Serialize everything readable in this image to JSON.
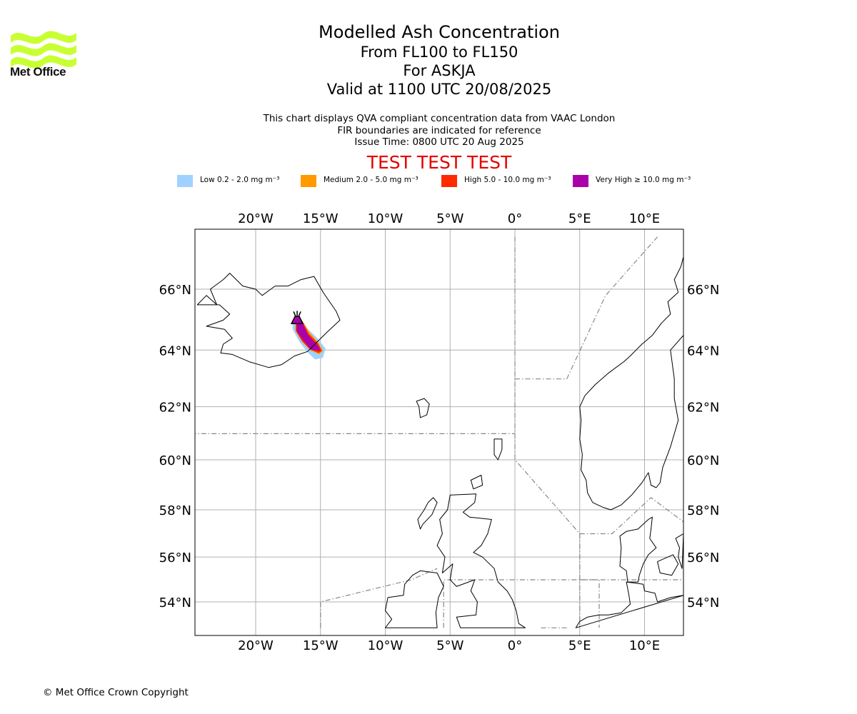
{
  "logo": {
    "name": "Met Office",
    "color": "#c8ff32"
  },
  "title": {
    "line1": "Modelled Ash Concentration",
    "line2": "From FL100 to FL150",
    "line3": "For ASKJA",
    "line4": "Valid at 1100 UTC 20/08/2025"
  },
  "subtitle": {
    "line1": "This chart displays QVA compliant concentration data from VAAC London",
    "line2": "FIR boundaries are indicated for reference",
    "line3": "Issue Time: 0800 UTC 20 Aug 2025"
  },
  "banner": "TEST TEST TEST",
  "legend": [
    {
      "label": "Low 0.2 - 2.0 mg m⁻³",
      "color": "#a0d2ff"
    },
    {
      "label": "Medium 2.0 - 5.0 mg m⁻³",
      "color": "#ff9a00"
    },
    {
      "label": "High 5.0 - 10.0 mg m⁻³",
      "color": "#ff2a00"
    },
    {
      "label": "Very High ≥ 10.0 mg m⁻³",
      "color": "#aa00aa"
    }
  ],
  "map": {
    "lon_range": [
      -25,
      13
    ],
    "lat_range": [
      52.8,
      67.6
    ],
    "lon_ticks": [
      {
        "value": -20,
        "label": "20°W"
      },
      {
        "value": -15,
        "label": "15°W"
      },
      {
        "value": -10,
        "label": "10°W"
      },
      {
        "value": -5,
        "label": "5°W"
      },
      {
        "value": 0,
        "label": "0°"
      },
      {
        "value": 5,
        "label": "5°E"
      },
      {
        "value": 10,
        "label": "10°E"
      }
    ],
    "lat_ticks": [
      {
        "value": 66,
        "label": "66°N"
      },
      {
        "value": 64,
        "label": "64°N"
      },
      {
        "value": 62,
        "label": "62°N"
      },
      {
        "value": 60,
        "label": "60°N"
      },
      {
        "value": 58,
        "label": "58°N"
      },
      {
        "value": 56,
        "label": "56°N"
      },
      {
        "value": 54,
        "label": "54°N"
      }
    ],
    "volcano": {
      "name": "ASKJA",
      "lon": -16.8,
      "lat": 65.05
    },
    "ash_plume": {
      "low": [
        [
          -17.1,
          65.0
        ],
        [
          -16.5,
          65.0
        ],
        [
          -16.0,
          64.7
        ],
        [
          -15.3,
          64.4
        ],
        [
          -14.65,
          64.05
        ],
        [
          -14.85,
          63.75
        ],
        [
          -15.4,
          63.7
        ],
        [
          -16.0,
          63.95
        ],
        [
          -16.6,
          64.3
        ],
        [
          -17.1,
          64.7
        ]
      ],
      "medium": [
        [
          -16.9,
          64.95
        ],
        [
          -16.4,
          64.95
        ],
        [
          -15.9,
          64.6
        ],
        [
          -15.2,
          64.25
        ],
        [
          -14.85,
          63.98
        ],
        [
          -15.1,
          63.88
        ],
        [
          -15.75,
          64.0
        ],
        [
          -16.4,
          64.3
        ],
        [
          -16.9,
          64.65
        ]
      ],
      "high": [
        [
          -16.85,
          64.92
        ],
        [
          -16.4,
          64.92
        ],
        [
          -15.95,
          64.55
        ],
        [
          -15.2,
          64.2
        ],
        [
          -14.95,
          63.98
        ],
        [
          -15.15,
          63.92
        ],
        [
          -15.8,
          64.05
        ],
        [
          -16.4,
          64.32
        ],
        [
          -16.85,
          64.65
        ]
      ],
      "very_high": [
        [
          -16.8,
          64.9
        ],
        [
          -16.4,
          64.9
        ],
        [
          -16.0,
          64.5
        ],
        [
          -15.25,
          64.15
        ],
        [
          -15.05,
          64.0
        ],
        [
          -15.7,
          64.02
        ],
        [
          -16.3,
          64.35
        ],
        [
          -16.8,
          64.65
        ]
      ]
    },
    "fir_boundaries": [
      [
        [
          -25,
          61.0
        ],
        [
          0,
          61.0
        ]
      ],
      [
        [
          0,
          67.6
        ],
        [
          0,
          60.0
        ],
        [
          5,
          57.0
        ],
        [
          5,
          52.8
        ]
      ],
      [
        [
          0,
          63.0
        ],
        [
          4,
          63.0
        ],
        [
          7,
          65.8
        ],
        [
          11,
          67.6
        ]
      ],
      [
        [
          5,
          57.0
        ],
        [
          7.5,
          57.0
        ],
        [
          10.5,
          58.5
        ],
        [
          13,
          57.5
        ]
      ],
      [
        [
          -15,
          52.8
        ],
        [
          -15,
          54.0
        ],
        [
          -8,
          55.0
        ],
        [
          -6,
          55.5
        ]
      ],
      [
        [
          -5.5,
          52.8
        ],
        [
          -5.5,
          55.0
        ],
        [
          5,
          55.0
        ],
        [
          6.5,
          55.0
        ],
        [
          6.5,
          52.8
        ]
      ],
      [
        [
          4,
          52.8
        ],
        [
          2,
          52.8
        ]
      ],
      [
        [
          5,
          55.0
        ],
        [
          13,
          55.0
        ]
      ]
    ],
    "coastlines": {
      "iceland": [
        [
          -24.5,
          65.5
        ],
        [
          -23.8,
          65.8
        ],
        [
          -23.0,
          65.5
        ],
        [
          -23.5,
          66.0
        ],
        [
          -22.5,
          66.3
        ],
        [
          -22.0,
          66.5
        ],
        [
          -21.0,
          66.1
        ],
        [
          -20.0,
          66.0
        ],
        [
          -19.5,
          65.8
        ],
        [
          -18.5,
          66.1
        ],
        [
          -17.5,
          66.1
        ],
        [
          -16.5,
          66.3
        ],
        [
          -15.5,
          66.4
        ],
        [
          -14.8,
          65.9
        ],
        [
          -13.8,
          65.3
        ],
        [
          -13.5,
          65.0
        ],
        [
          -14.5,
          64.6
        ],
        [
          -15.2,
          64.3
        ],
        [
          -16.0,
          63.95
        ],
        [
          -17.0,
          63.8
        ],
        [
          -18.0,
          63.5
        ],
        [
          -19.0,
          63.4
        ],
        [
          -20.5,
          63.6
        ],
        [
          -21.8,
          63.85
        ],
        [
          -22.7,
          63.9
        ],
        [
          -22.5,
          64.2
        ],
        [
          -21.8,
          64.4
        ],
        [
          -22.4,
          64.7
        ],
        [
          -23.8,
          64.8
        ],
        [
          -22.5,
          65.0
        ],
        [
          -22.0,
          65.2
        ],
        [
          -22.8,
          65.5
        ]
      ],
      "faroes": [
        [
          -7.6,
          62.2
        ],
        [
          -7.0,
          62.3
        ],
        [
          -6.6,
          62.1
        ],
        [
          -6.8,
          61.7
        ],
        [
          -7.3,
          61.6
        ],
        [
          -7.4,
          62.0
        ]
      ],
      "shetland": [
        [
          -1.6,
          60.8
        ],
        [
          -1.0,
          60.8
        ],
        [
          -1.0,
          60.4
        ],
        [
          -1.3,
          60.0
        ],
        [
          -1.6,
          60.2
        ]
      ],
      "orkney": [
        [
          -3.4,
          59.2
        ],
        [
          -2.6,
          59.4
        ],
        [
          -2.5,
          59.0
        ],
        [
          -3.2,
          58.85
        ]
      ],
      "scotland": [
        [
          -5.0,
          58.6
        ],
        [
          -3.0,
          58.65
        ],
        [
          -3.1,
          58.3
        ],
        [
          -4.0,
          57.9
        ],
        [
          -3.5,
          57.7
        ],
        [
          -1.8,
          57.6
        ],
        [
          -2.1,
          57.0
        ],
        [
          -2.6,
          56.5
        ],
        [
          -3.2,
          56.2
        ],
        [
          -2.5,
          56.0
        ],
        [
          -1.6,
          55.5
        ],
        [
          -1.3,
          54.9
        ],
        [
          -0.6,
          54.5
        ],
        [
          -0.2,
          54.1
        ],
        [
          0.1,
          53.6
        ],
        [
          0.3,
          53.0
        ],
        [
          0.8,
          52.8
        ],
        [
          -4.2,
          52.8
        ],
        [
          -4.5,
          53.3
        ],
        [
          -3.0,
          53.4
        ],
        [
          -2.9,
          54.0
        ],
        [
          -3.4,
          54.5
        ],
        [
          -3.1,
          55.0
        ],
        [
          -4.5,
          54.7
        ],
        [
          -5.0,
          55.0
        ],
        [
          -4.8,
          55.7
        ],
        [
          -5.6,
          55.3
        ],
        [
          -5.4,
          56.0
        ],
        [
          -6.0,
          56.5
        ],
        [
          -5.6,
          57.0
        ],
        [
          -5.8,
          57.6
        ],
        [
          -5.2,
          58.0
        ]
      ],
      "lewis": [
        [
          -6.3,
          58.5
        ],
        [
          -6.0,
          58.3
        ],
        [
          -6.4,
          57.8
        ],
        [
          -7.1,
          57.4
        ],
        [
          -7.3,
          57.2
        ],
        [
          -7.5,
          57.6
        ],
        [
          -7.0,
          58.0
        ],
        [
          -6.7,
          58.3
        ]
      ],
      "ireland_north": [
        [
          -7.3,
          55.4
        ],
        [
          -6.0,
          55.3
        ],
        [
          -5.5,
          54.7
        ],
        [
          -5.9,
          54.2
        ],
        [
          -6.1,
          53.5
        ],
        [
          -6.0,
          52.8
        ],
        [
          -10.0,
          52.8
        ],
        [
          -9.5,
          53.2
        ],
        [
          -10.0,
          53.6
        ],
        [
          -9.8,
          54.2
        ],
        [
          -8.6,
          54.3
        ],
        [
          -8.5,
          54.8
        ],
        [
          -7.9,
          55.2
        ]
      ],
      "norway": [
        [
          13,
          67.0
        ],
        [
          12.8,
          66.7
        ],
        [
          12.3,
          66.3
        ],
        [
          12.6,
          65.9
        ],
        [
          11.8,
          65.6
        ],
        [
          12.0,
          65.2
        ],
        [
          11.3,
          64.9
        ],
        [
          10.6,
          64.5
        ],
        [
          9.8,
          64.2
        ],
        [
          8.9,
          63.8
        ],
        [
          8.4,
          63.6
        ],
        [
          7.2,
          63.2
        ],
        [
          6.2,
          62.8
        ],
        [
          5.4,
          62.4
        ],
        [
          5.0,
          62.0
        ],
        [
          5.1,
          61.5
        ],
        [
          5.0,
          60.8
        ],
        [
          5.2,
          60.2
        ],
        [
          5.1,
          59.6
        ],
        [
          5.5,
          59.2
        ],
        [
          5.6,
          58.7
        ],
        [
          6.0,
          58.3
        ],
        [
          6.8,
          58.1
        ],
        [
          7.4,
          58.0
        ],
        [
          8.2,
          58.2
        ],
        [
          9.0,
          58.6
        ],
        [
          9.8,
          59.1
        ],
        [
          10.3,
          59.5
        ],
        [
          10.5,
          59.0
        ],
        [
          10.9,
          58.9
        ],
        [
          11.2,
          59.1
        ],
        [
          11.4,
          59.7
        ],
        [
          12.0,
          60.5
        ],
        [
          12.6,
          61.5
        ],
        [
          12.3,
          62.3
        ],
        [
          12.3,
          63.0
        ],
        [
          12.0,
          64.0
        ],
        [
          13,
          64.5
        ]
      ],
      "sweden_west": [
        [
          13,
          57.0
        ],
        [
          12.4,
          56.8
        ],
        [
          12.7,
          56.4
        ],
        [
          12.6,
          56.0
        ],
        [
          12.9,
          55.5
        ]
      ],
      "denmark": [
        [
          8.6,
          57.1
        ],
        [
          9.5,
          57.2
        ],
        [
          10.3,
          57.6
        ],
        [
          10.6,
          57.7
        ],
        [
          10.5,
          57.2
        ],
        [
          10.4,
          56.8
        ],
        [
          10.9,
          56.4
        ],
        [
          10.3,
          56.1
        ],
        [
          9.9,
          55.7
        ],
        [
          9.6,
          55.2
        ],
        [
          9.5,
          54.9
        ],
        [
          8.7,
          54.9
        ],
        [
          8.6,
          55.4
        ],
        [
          8.1,
          55.6
        ],
        [
          8.2,
          56.4
        ],
        [
          8.1,
          56.9
        ]
      ],
      "zealand": [
        [
          11.0,
          55.8
        ],
        [
          12.2,
          56.1
        ],
        [
          12.6,
          55.7
        ],
        [
          12.1,
          55.2
        ],
        [
          11.2,
          55.3
        ]
      ],
      "germany_nl": [
        [
          13,
          54.3
        ],
        [
          12.0,
          54.2
        ],
        [
          11.0,
          54.0
        ],
        [
          10.8,
          54.4
        ],
        [
          10.0,
          54.5
        ],
        [
          9.9,
          54.8
        ],
        [
          8.6,
          54.9
        ],
        [
          8.8,
          54.3
        ],
        [
          8.9,
          53.9
        ],
        [
          8.2,
          53.5
        ],
        [
          7.2,
          53.4
        ],
        [
          6.5,
          53.4
        ],
        [
          5.6,
          53.3
        ],
        [
          5.0,
          53.1
        ],
        [
          4.7,
          52.8
        ]
      ]
    }
  },
  "copyright": "© Met Office Crown Copyright"
}
